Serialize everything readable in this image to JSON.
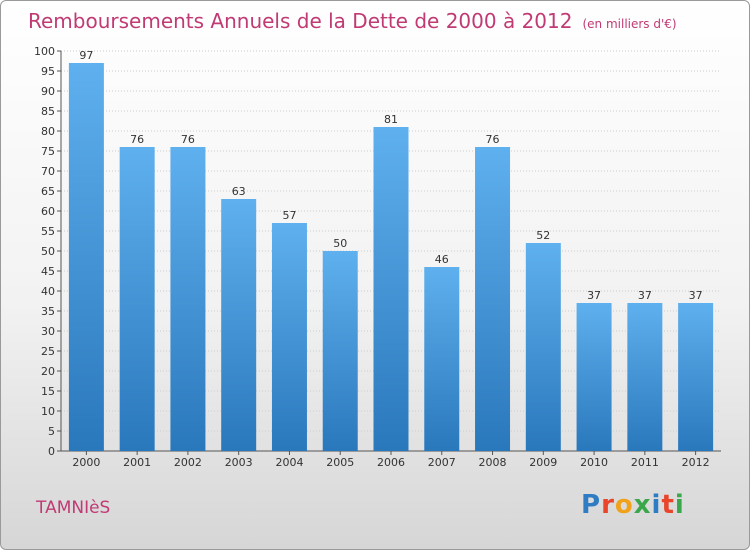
{
  "header": {
    "title": "Remboursements Annuels de la Dette de 2000 à 2012",
    "unit": "(en milliers d'€)"
  },
  "footer": {
    "commune": "TAMNIèS",
    "logo": [
      "P",
      "r",
      "o",
      "x",
      "i",
      "t",
      "i"
    ],
    "logo_colors": [
      "#2e7dc4",
      "#e8452b",
      "#f0a21b",
      "#3aa84a",
      "#2e7dc4",
      "#e8452b",
      "#3aa84a"
    ]
  },
  "colors": {
    "bar_top": "#5fb0ee",
    "bar_bottom": "#2a78bc",
    "text": "#333333",
    "grid": "#cccccc"
  },
  "chart_data": {
    "type": "bar",
    "categories": [
      "2000",
      "2001",
      "2002",
      "2003",
      "2004",
      "2005",
      "2006",
      "2007",
      "2008",
      "2009",
      "2010",
      "2011",
      "2012"
    ],
    "values": [
      97,
      76,
      76,
      63,
      57,
      50,
      81,
      46,
      76,
      52,
      37,
      37,
      37
    ],
    "ylim": [
      0,
      100
    ],
    "ytick_step": 5,
    "grid": true,
    "data_labels": true
  }
}
